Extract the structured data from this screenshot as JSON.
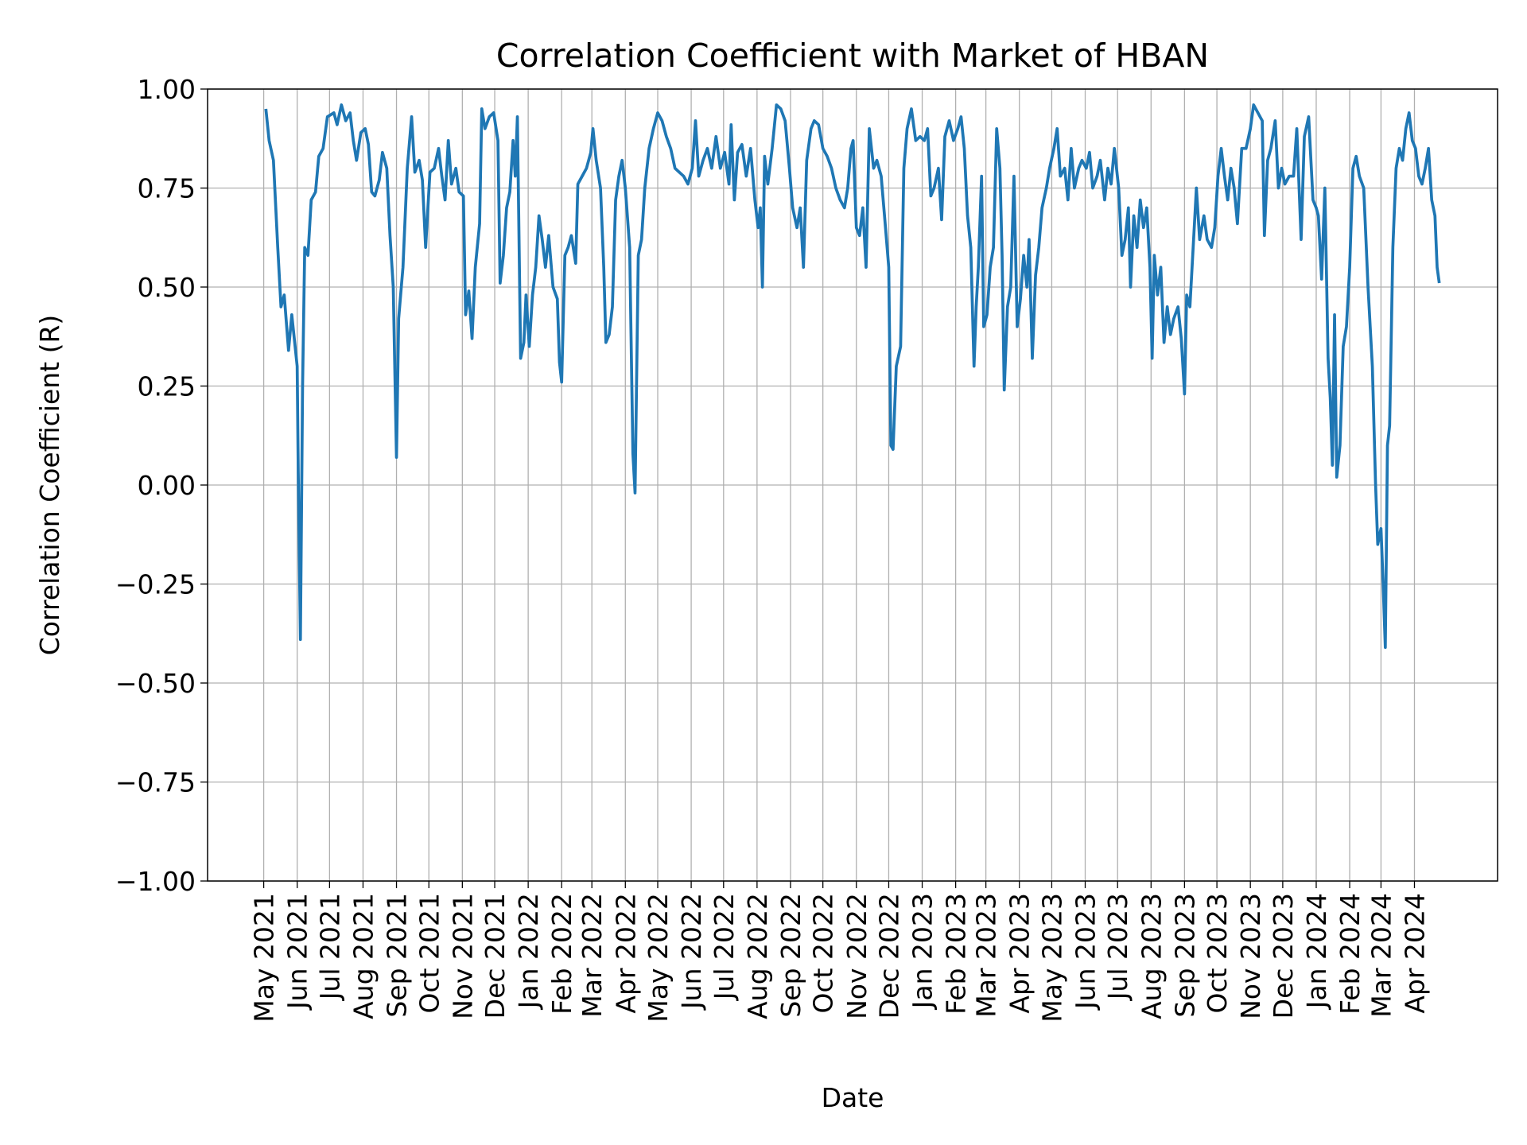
{
  "chart_data": {
    "type": "line",
    "title": "Correlation Coefficient with Market of HBAN",
    "x_label": "Date",
    "y_label": "Correlation Coefficient (R)",
    "color": "#1f77b4",
    "grid": true,
    "xlim": [
      "2021-03-10",
      "2024-06-17"
    ],
    "ylim": [
      -1,
      1
    ],
    "yticks": [
      {
        "value": -1,
        "label": "−1.00"
      },
      {
        "value": -0.75,
        "label": "−0.75"
      },
      {
        "value": -0.5,
        "label": "−0.50"
      },
      {
        "value": -0.25,
        "label": "−0.25"
      },
      {
        "value": 0,
        "label": "0.00"
      },
      {
        "value": 0.25,
        "label": "0.25"
      },
      {
        "value": 0.5,
        "label": "0.50"
      },
      {
        "value": 0.75,
        "label": "0.75"
      },
      {
        "value": 1,
        "label": "1.00"
      }
    ],
    "xticks": [
      {
        "value": "2021-05-01",
        "label": "May 2021"
      },
      {
        "value": "2021-06-01",
        "label": "Jun 2021"
      },
      {
        "value": "2021-07-01",
        "label": "Jul 2021"
      },
      {
        "value": "2021-08-01",
        "label": "Aug 2021"
      },
      {
        "value": "2021-09-01",
        "label": "Sep 2021"
      },
      {
        "value": "2021-10-01",
        "label": "Oct 2021"
      },
      {
        "value": "2021-11-01",
        "label": "Nov 2021"
      },
      {
        "value": "2021-12-01",
        "label": "Dec 2021"
      },
      {
        "value": "2022-01-01",
        "label": "Jan 2022"
      },
      {
        "value": "2022-02-01",
        "label": "Feb 2022"
      },
      {
        "value": "2022-03-01",
        "label": "Mar 2022"
      },
      {
        "value": "2022-04-01",
        "label": "Apr 2022"
      },
      {
        "value": "2022-05-01",
        "label": "May 2022"
      },
      {
        "value": "2022-06-01",
        "label": "Jun 2022"
      },
      {
        "value": "2022-07-01",
        "label": "Jul 2022"
      },
      {
        "value": "2022-08-01",
        "label": "Aug 2022"
      },
      {
        "value": "2022-09-01",
        "label": "Sep 2022"
      },
      {
        "value": "2022-10-01",
        "label": "Oct 2022"
      },
      {
        "value": "2022-11-01",
        "label": "Nov 2022"
      },
      {
        "value": "2022-12-01",
        "label": "Dec 2022"
      },
      {
        "value": "2023-01-01",
        "label": "Jan 2023"
      },
      {
        "value": "2023-02-01",
        "label": "Feb 2023"
      },
      {
        "value": "2023-03-01",
        "label": "Mar 2023"
      },
      {
        "value": "2023-04-01",
        "label": "Apr 2023"
      },
      {
        "value": "2023-05-01",
        "label": "May 2023"
      },
      {
        "value": "2023-06-01",
        "label": "Jun 2023"
      },
      {
        "value": "2023-07-01",
        "label": "Jul 2023"
      },
      {
        "value": "2023-08-01",
        "label": "Aug 2023"
      },
      {
        "value": "2023-09-01",
        "label": "Sep 2023"
      },
      {
        "value": "2023-10-01",
        "label": "Oct 2023"
      },
      {
        "value": "2023-11-01",
        "label": "Nov 2023"
      },
      {
        "value": "2023-12-01",
        "label": "Dec 2023"
      },
      {
        "value": "2024-01-01",
        "label": "Jan 2024"
      },
      {
        "value": "2024-02-01",
        "label": "Feb 2024"
      },
      {
        "value": "2024-03-01",
        "label": "Mar 2024"
      },
      {
        "value": "2024-04-01",
        "label": "Apr 2024"
      }
    ],
    "x": [
      "2021-05-03",
      "2021-05-06",
      "2021-05-10",
      "2021-05-14",
      "2021-05-17",
      "2021-05-20",
      "2021-05-24",
      "2021-05-27",
      "2021-06-01",
      "2021-06-02",
      "2021-06-04",
      "2021-06-06",
      "2021-06-08",
      "2021-06-11",
      "2021-06-14",
      "2021-06-18",
      "2021-06-21",
      "2021-06-25",
      "2021-06-29",
      "2021-07-05",
      "2021-07-08",
      "2021-07-12",
      "2021-07-16",
      "2021-07-20",
      "2021-07-23",
      "2021-07-26",
      "2021-07-30",
      "2021-08-03",
      "2021-08-06",
      "2021-08-09",
      "2021-08-12",
      "2021-08-16",
      "2021-08-19",
      "2021-08-23",
      "2021-08-26",
      "2021-08-29",
      "2021-09-01",
      "2021-09-03",
      "2021-09-07",
      "2021-09-11",
      "2021-09-15",
      "2021-09-18",
      "2021-09-22",
      "2021-09-25",
      "2021-09-28",
      "2021-10-02",
      "2021-10-06",
      "2021-10-10",
      "2021-10-13",
      "2021-10-16",
      "2021-10-19",
      "2021-10-22",
      "2021-10-26",
      "2021-10-29",
      "2021-11-02",
      "2021-11-04",
      "2021-11-07",
      "2021-11-10",
      "2021-11-13",
      "2021-11-17",
      "2021-11-19",
      "2021-11-22",
      "2021-11-26",
      "2021-11-30",
      "2021-12-04",
      "2021-12-06",
      "2021-12-09",
      "2021-12-12",
      "2021-12-15",
      "2021-12-18",
      "2021-12-20",
      "2021-12-22",
      "2021-12-25",
      "2021-12-28",
      "2021-12-30",
      "2022-01-02",
      "2022-01-05",
      "2022-01-08",
      "2022-01-11",
      "2022-01-14",
      "2022-01-17",
      "2022-01-20",
      "2022-01-24",
      "2022-01-28",
      "2022-01-30",
      "2022-02-01",
      "2022-02-04",
      "2022-02-07",
      "2022-02-10",
      "2022-02-14",
      "2022-02-16",
      "2022-02-20",
      "2022-02-24",
      "2022-02-28",
      "2022-03-02",
      "2022-03-05",
      "2022-03-09",
      "2022-03-12",
      "2022-03-14",
      "2022-03-17",
      "2022-03-20",
      "2022-03-23",
      "2022-03-26",
      "2022-03-29",
      "2022-04-01",
      "2022-04-05",
      "2022-04-08",
      "2022-04-10",
      "2022-04-13",
      "2022-04-16",
      "2022-04-19",
      "2022-04-23",
      "2022-04-27",
      "2022-05-01",
      "2022-05-05",
      "2022-05-09",
      "2022-05-13",
      "2022-05-17",
      "2022-05-21",
      "2022-05-25",
      "2022-05-29",
      "2022-06-02",
      "2022-06-05",
      "2022-06-08",
      "2022-06-12",
      "2022-06-16",
      "2022-06-20",
      "2022-06-24",
      "2022-06-28",
      "2022-07-02",
      "2022-07-06",
      "2022-07-08",
      "2022-07-11",
      "2022-07-14",
      "2022-07-18",
      "2022-07-22",
      "2022-07-26",
      "2022-07-30",
      "2022-08-02",
      "2022-08-04",
      "2022-08-06",
      "2022-08-08",
      "2022-08-11",
      "2022-08-15",
      "2022-08-19",
      "2022-08-23",
      "2022-08-27",
      "2022-08-31",
      "2022-09-03",
      "2022-09-07",
      "2022-09-10",
      "2022-09-13",
      "2022-09-16",
      "2022-09-20",
      "2022-09-23",
      "2022-09-27",
      "2022-10-01",
      "2022-10-05",
      "2022-10-09",
      "2022-10-13",
      "2022-10-17",
      "2022-10-21",
      "2022-10-24",
      "2022-10-27",
      "2022-10-29",
      "2022-11-01",
      "2022-11-04",
      "2022-11-07",
      "2022-11-10",
      "2022-11-13",
      "2022-11-17",
      "2022-11-20",
      "2022-11-24",
      "2022-11-28",
      "2022-12-01",
      "2022-12-03",
      "2022-12-05",
      "2022-12-08",
      "2022-12-12",
      "2022-12-15",
      "2022-12-18",
      "2022-12-22",
      "2022-12-26",
      "2022-12-30",
      "2023-01-03",
      "2023-01-06",
      "2023-01-09",
      "2023-01-12",
      "2023-01-16",
      "2023-01-19",
      "2023-01-22",
      "2023-01-26",
      "2023-01-30",
      "2023-02-03",
      "2023-02-06",
      "2023-02-09",
      "2023-02-12",
      "2023-02-15",
      "2023-02-18",
      "2023-02-20",
      "2023-02-22",
      "2023-02-25",
      "2023-02-27",
      "2023-03-02",
      "2023-03-05",
      "2023-03-08",
      "2023-03-11",
      "2023-03-14",
      "2023-03-16",
      "2023-03-18",
      "2023-03-21",
      "2023-03-24",
      "2023-03-27",
      "2023-03-30",
      "2023-04-02",
      "2023-04-05",
      "2023-04-08",
      "2023-04-10",
      "2023-04-13",
      "2023-04-16",
      "2023-04-19",
      "2023-04-22",
      "2023-04-26",
      "2023-04-29",
      "2023-05-03",
      "2023-05-06",
      "2023-05-09",
      "2023-05-13",
      "2023-05-16",
      "2023-05-19",
      "2023-05-22",
      "2023-05-26",
      "2023-05-29",
      "2023-06-02",
      "2023-06-05",
      "2023-06-08",
      "2023-06-12",
      "2023-06-15",
      "2023-06-19",
      "2023-06-22",
      "2023-06-25",
      "2023-06-28",
      "2023-07-02",
      "2023-07-05",
      "2023-07-08",
      "2023-07-11",
      "2023-07-13",
      "2023-07-16",
      "2023-07-19",
      "2023-07-22",
      "2023-07-25",
      "2023-07-28",
      "2023-07-31",
      "2023-08-02",
      "2023-08-04",
      "2023-08-07",
      "2023-08-10",
      "2023-08-13",
      "2023-08-16",
      "2023-08-19",
      "2023-08-22",
      "2023-08-26",
      "2023-08-29",
      "2023-09-01",
      "2023-09-03",
      "2023-09-06",
      "2023-09-09",
      "2023-09-12",
      "2023-09-15",
      "2023-09-19",
      "2023-09-22",
      "2023-09-26",
      "2023-09-29",
      "2023-10-02",
      "2023-10-05",
      "2023-10-08",
      "2023-10-11",
      "2023-10-14",
      "2023-10-17",
      "2023-10-20",
      "2023-10-24",
      "2023-10-28",
      "2023-11-01",
      "2023-11-04",
      "2023-11-08",
      "2023-11-12",
      "2023-11-14",
      "2023-11-17",
      "2023-11-20",
      "2023-11-24",
      "2023-11-27",
      "2023-11-30",
      "2023-12-03",
      "2023-12-07",
      "2023-12-11",
      "2023-12-14",
      "2023-12-18",
      "2023-12-21",
      "2023-12-25",
      "2023-12-29",
      "2024-01-01",
      "2024-01-03",
      "2024-01-06",
      "2024-01-09",
      "2024-01-12",
      "2024-01-14",
      "2024-01-16",
      "2024-01-18",
      "2024-01-20",
      "2024-01-23",
      "2024-01-26",
      "2024-01-29",
      "2024-02-01",
      "2024-02-04",
      "2024-02-07",
      "2024-02-10",
      "2024-02-14",
      "2024-02-18",
      "2024-02-22",
      "2024-02-25",
      "2024-02-27",
      "2024-03-01",
      "2024-03-03",
      "2024-03-05",
      "2024-03-07",
      "2024-03-09",
      "2024-03-12",
      "2024-03-15",
      "2024-03-18",
      "2024-03-21",
      "2024-03-24",
      "2024-03-27",
      "2024-03-30",
      "2024-04-02",
      "2024-04-05",
      "2024-04-08",
      "2024-04-11",
      "2024-04-14",
      "2024-04-17",
      "2024-04-20",
      "2024-04-22",
      "2024-04-24"
    ],
    "values": [
      0.95,
      0.87,
      0.82,
      0.6,
      0.45,
      0.48,
      0.34,
      0.43,
      0.3,
      0.03,
      -0.39,
      0.25,
      0.6,
      0.58,
      0.72,
      0.74,
      0.83,
      0.85,
      0.93,
      0.94,
      0.91,
      0.96,
      0.92,
      0.94,
      0.87,
      0.82,
      0.89,
      0.9,
      0.86,
      0.74,
      0.73,
      0.77,
      0.84,
      0.8,
      0.63,
      0.5,
      0.07,
      0.42,
      0.55,
      0.8,
      0.93,
      0.79,
      0.82,
      0.77,
      0.6,
      0.79,
      0.8,
      0.85,
      0.78,
      0.72,
      0.87,
      0.76,
      0.8,
      0.74,
      0.73,
      0.43,
      0.49,
      0.37,
      0.55,
      0.66,
      0.95,
      0.9,
      0.93,
      0.94,
      0.87,
      0.51,
      0.58,
      0.7,
      0.74,
      0.87,
      0.78,
      0.93,
      0.32,
      0.36,
      0.48,
      0.35,
      0.48,
      0.55,
      0.68,
      0.62,
      0.55,
      0.63,
      0.5,
      0.47,
      0.31,
      0.26,
      0.58,
      0.6,
      0.63,
      0.56,
      0.76,
      0.78,
      0.8,
      0.84,
      0.9,
      0.82,
      0.75,
      0.55,
      0.36,
      0.38,
      0.45,
      0.72,
      0.78,
      0.82,
      0.75,
      0.6,
      0.08,
      -0.02,
      0.58,
      0.62,
      0.75,
      0.85,
      0.9,
      0.94,
      0.92,
      0.88,
      0.85,
      0.8,
      0.79,
      0.78,
      0.76,
      0.8,
      0.92,
      0.78,
      0.82,
      0.85,
      0.8,
      0.88,
      0.8,
      0.84,
      0.76,
      0.91,
      0.72,
      0.84,
      0.86,
      0.78,
      0.85,
      0.72,
      0.65,
      0.7,
      0.5,
      0.83,
      0.76,
      0.85,
      0.96,
      0.95,
      0.92,
      0.8,
      0.7,
      0.65,
      0.7,
      0.55,
      0.82,
      0.9,
      0.92,
      0.91,
      0.85,
      0.83,
      0.8,
      0.75,
      0.72,
      0.7,
      0.75,
      0.85,
      0.87,
      0.65,
      0.63,
      0.7,
      0.55,
      0.9,
      0.8,
      0.82,
      0.78,
      0.65,
      0.55,
      0.1,
      0.09,
      0.3,
      0.35,
      0.8,
      0.9,
      0.95,
      0.87,
      0.88,
      0.87,
      0.9,
      0.73,
      0.75,
      0.8,
      0.67,
      0.88,
      0.92,
      0.87,
      0.9,
      0.93,
      0.85,
      0.68,
      0.6,
      0.3,
      0.45,
      0.55,
      0.78,
      0.4,
      0.43,
      0.55,
      0.6,
      0.9,
      0.8,
      0.58,
      0.24,
      0.45,
      0.5,
      0.78,
      0.4,
      0.47,
      0.58,
      0.5,
      0.62,
      0.32,
      0.53,
      0.6,
      0.7,
      0.75,
      0.8,
      0.85,
      0.9,
      0.78,
      0.8,
      0.72,
      0.85,
      0.75,
      0.8,
      0.82,
      0.8,
      0.84,
      0.75,
      0.78,
      0.82,
      0.72,
      0.8,
      0.76,
      0.85,
      0.75,
      0.58,
      0.62,
      0.7,
      0.5,
      0.68,
      0.6,
      0.72,
      0.65,
      0.7,
      0.55,
      0.32,
      0.58,
      0.48,
      0.55,
      0.36,
      0.45,
      0.38,
      0.42,
      0.45,
      0.37,
      0.23,
      0.48,
      0.45,
      0.6,
      0.75,
      0.62,
      0.68,
      0.62,
      0.6,
      0.65,
      0.78,
      0.85,
      0.78,
      0.72,
      0.8,
      0.75,
      0.66,
      0.85,
      0.85,
      0.9,
      0.96,
      0.94,
      0.92,
      0.63,
      0.82,
      0.85,
      0.92,
      0.75,
      0.8,
      0.76,
      0.78,
      0.78,
      0.9,
      0.62,
      0.88,
      0.93,
      0.72,
      0.7,
      0.68,
      0.52,
      0.75,
      0.32,
      0.22,
      0.05,
      0.43,
      0.02,
      0.1,
      0.35,
      0.4,
      0.55,
      0.8,
      0.83,
      0.78,
      0.75,
      0.5,
      0.3,
      0.0,
      -0.15,
      -0.11,
      -0.25,
      -0.41,
      0.1,
      0.15,
      0.6,
      0.8,
      0.85,
      0.82,
      0.9,
      0.94,
      0.87,
      0.85,
      0.78,
      0.76,
      0.8,
      0.85,
      0.72,
      0.68,
      0.55,
      0.51
    ]
  }
}
